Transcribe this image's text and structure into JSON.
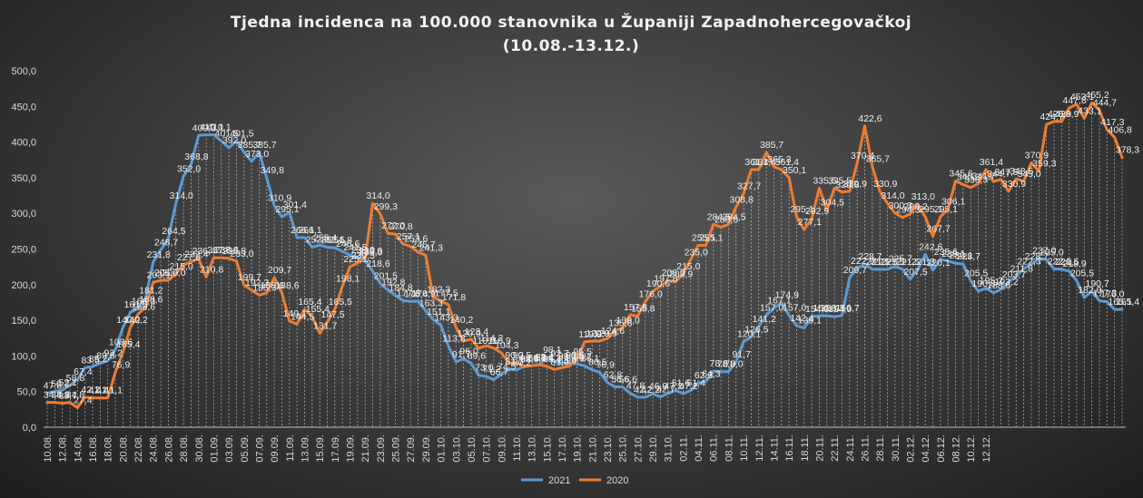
{
  "chart_data": {
    "type": "line",
    "title_line1": "Tjedna  incidenca  na  100.000  stanovnika  u  Županiji  Zapadnohercegovačkoj",
    "title_line2": "(10.08.-13.12.)",
    "ylim": [
      0,
      500
    ],
    "yticks": [
      "0,0",
      "50,0",
      "100,0",
      "150,0",
      "200,0",
      "250,0",
      "300,0",
      "350,0",
      "400,0",
      "450,0",
      "500,0"
    ],
    "legend_position": "bottom",
    "xtick_labels": [
      "10.08.",
      "12.08.",
      "14.08.",
      "16.08.",
      "18.08.",
      "20.08.",
      "22.08.",
      "24.08.",
      "26.08.",
      "28.08.",
      "30.08.",
      "01.09.",
      "03.09.",
      "05.09.",
      "07.09.",
      "09.09.",
      "11.09.",
      "13.09.",
      "15.09.",
      "17.09.",
      "19.09.",
      "21.09.",
      "23.09.",
      "25.09.",
      "27.09.",
      "29.09.",
      "01.10.",
      "03.10.",
      "05.10.",
      "07.10.",
      "09.10.",
      "11.10.",
      "13.10.",
      "15.10.",
      "17.10.",
      "19.10.",
      "21.10.",
      "23.10.",
      "25.10.",
      "27.10.",
      "29.10.",
      "31.10.",
      "02.11.",
      "04.11.",
      "06.11.",
      "08.11.",
      "10.11.",
      "12.11.",
      "14.11.",
      "16.11.",
      "18.11.",
      "20.11.",
      "22.11.",
      "24.11.",
      "26.11.",
      "28.11.",
      "30.11.",
      "02.12.",
      "04.12.",
      "06.12.",
      "08.12.",
      "10.12.",
      "12.12."
    ],
    "series": [
      {
        "name": "2021",
        "color": "#5b9bd5",
        "values": [
          47.8,
          50.2,
          52.1,
          58.8,
          67.4,
          83.5,
          85.2,
          89.5,
          93.2,
          108.6,
          140.2,
          161.5,
          166.3,
          181.2,
          231.8,
          248.7,
          264.5,
          314.0,
          352.0,
          368.8,
          409.3,
          410.1,
          410.1,
          401.5,
          392.0,
          401.5,
          385.7,
          373.0,
          385.7,
          349.8,
          310.9,
          295.1,
          301.4,
          266.1,
          266.1,
          252.6,
          255.4,
          252.6,
          251.8,
          246.6,
          241.5,
          238.0,
          235.0,
          218.6,
          201.5,
          192.8,
          184.8,
          177.6,
          176.4,
          176.9,
          163.3,
          151.1,
          143.3,
          113.8,
          91.7,
          96.0,
          89.6,
          73.0,
          71.2,
          66.7,
          74.5,
          81.7,
          80.2,
          85.4,
          86.4,
          87.4,
          98.1,
          92.7,
          89.3,
          90.5,
          88.7,
          86.1,
          80.5,
          76.9,
          62.8,
          56.6,
          56.6,
          47.8,
          42.2,
          42.2,
          46.9,
          42.7,
          47.2,
          51.6,
          47.2,
          51.4,
          62.3,
          64.3,
          78.6,
          78.0,
          78.0,
          91.7,
          120.1,
          126.5,
          141.2,
          157.0,
          167.1,
          174.9,
          157.0,
          142.4,
          139.1,
          154.9,
          156.3,
          156.3,
          154.9,
          156.7,
          209.7,
          222.9,
          228.7,
          221.5,
          221.5,
          221.5,
          225.7,
          221.5,
          207.5,
          221.3,
          242.6,
          220.1,
          235.6,
          233.1,
          230.1,
          228.7,
          205.5,
          190.8,
          195.2,
          188.6,
          193.2,
          203.7,
          211.8,
          222.3,
          228.7,
          237.0,
          235.0,
          222.0,
          221.5,
          218.9,
          205.5,
          182.0,
          190.7,
          177.3,
          176.0,
          165.1,
          165.4
        ]
      },
      {
        "name": "2020",
        "color": "#ed7d31",
        "values": [
          34.8,
          34.8,
          33.7,
          34.8,
          27.4,
          42.2,
          41.2,
          41.1,
          41.1,
          76.9,
          105.4,
          140.2,
          158.6,
          168.6,
          203.1,
          206.0,
          206.0,
          215.0,
          227.8,
          232.4,
          236.4,
          210.8,
          237.8,
          237.8,
          236.8,
          233.0,
          199.7,
          192.3,
          185.3,
          188.6,
          209.7,
          188.6,
          149.1,
          144.5,
          165.4,
          155.4,
          131.7,
          147.5,
          165.5,
          198.1,
          225.1,
          230.5,
          236.9,
          314.0,
          299.3,
          272.0,
          270.8,
          257.1,
          253.6,
          245.7,
          241.3,
          182.3,
          177.5,
          171.8,
          140.2,
          120.9,
          123.4,
          110.9,
          114.2,
          110.9,
          104.3,
          90.2,
          90.5,
          84.9,
          86.2,
          88.1,
          85.4,
          81.0,
          83.6,
          85.9,
          95.5,
          119.8,
          120.9,
          120.9,
          124.6,
          135.8,
          139.0,
          157.8,
          155.8,
          176.0,
          190.6,
          197.8,
          206.0,
          203.9,
          215.0,
          235.0,
          255.1,
          255.1,
          284.5,
          280.6,
          284.5,
          308.8,
          327.7,
          361.4,
          361.4,
          385.7,
          365.3,
          361.4,
          350.1,
          295.1,
          277.1,
          292.9,
          335.5,
          304.5,
          335.5,
          329.8,
          330.9,
          370.4,
          422.6,
          365.7,
          330.9,
          314.0,
          300.3,
          294.3,
          299.2,
          313.0,
          295.1,
          267.7,
          295.1,
          306.1,
          345.6,
          340.3,
          336.3,
          341.7,
          361.4,
          344.7,
          347.5,
          330.9,
          348.5,
          345.0,
          370.9,
          359.3,
          424.7,
          428.9,
          428.9,
          447.8,
          453.1,
          433.1,
          455.2,
          444.7,
          417.3,
          406.8,
          378.3
        ]
      }
    ]
  }
}
